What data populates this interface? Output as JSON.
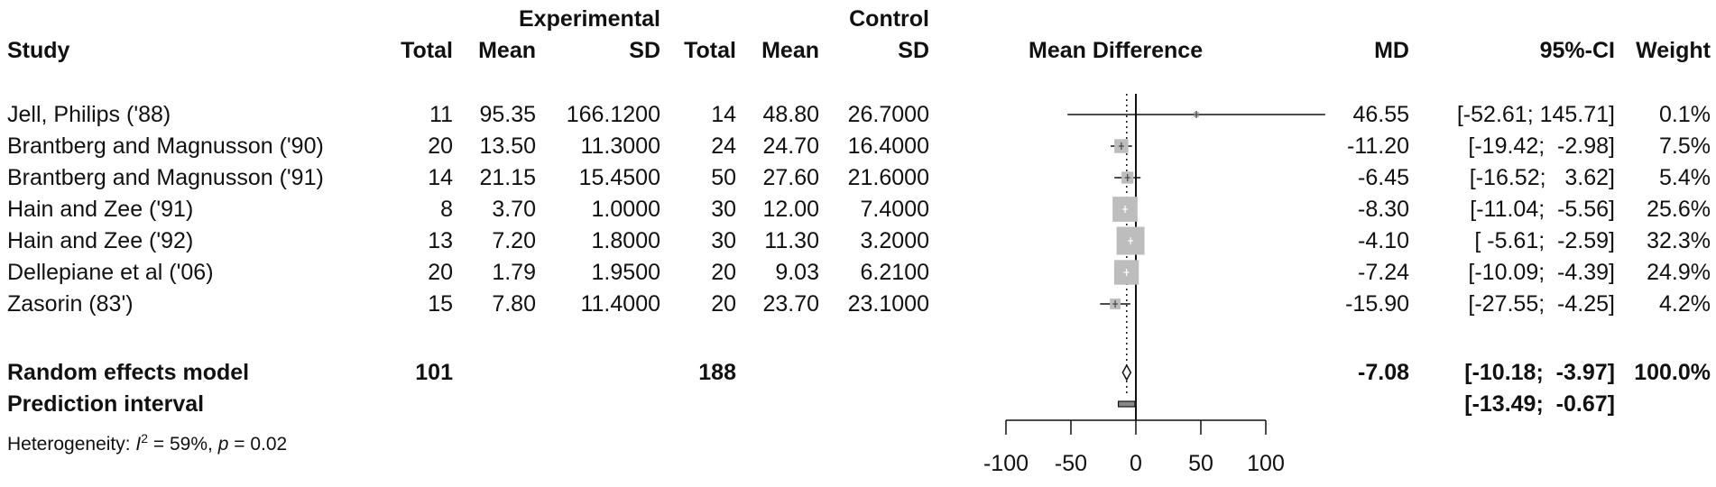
{
  "chart_data": {
    "type": "forest",
    "group_headers": {
      "experimental": "Experimental",
      "control": "Control"
    },
    "columns": {
      "study": "Study",
      "exp_total": "Total",
      "exp_mean": "Mean",
      "exp_sd": "SD",
      "ctl_total": "Total",
      "ctl_mean": "Mean",
      "ctl_sd": "SD",
      "plot": "Mean Difference",
      "md": "MD",
      "ci": "95%-CI",
      "weight": "Weight"
    },
    "studies": [
      {
        "name": "Jell, Philips ('88)",
        "e_total": "11",
        "e_mean": "95.35",
        "e_sd": "166.1200",
        "c_total": "14",
        "c_mean": "48.80",
        "c_sd": "26.7000",
        "md_text": "46.55",
        "ci_text": "[-52.61; 145.71]",
        "weight_text": "0.1%",
        "md": 46.55,
        "lower": -52.61,
        "upper": 145.71,
        "weight": 0.1
      },
      {
        "name": "Brantberg and Magnusson ('90)",
        "e_total": "20",
        "e_mean": "13.50",
        "e_sd": "11.3000",
        "c_total": "24",
        "c_mean": "24.70",
        "c_sd": "16.4000",
        "md_text": "-11.20",
        "ci_text": "[-19.42;  -2.98]",
        "weight_text": "7.5%",
        "md": -11.2,
        "lower": -19.42,
        "upper": -2.98,
        "weight": 7.5
      },
      {
        "name": "Brantberg and Magnusson ('91)",
        "e_total": "14",
        "e_mean": "21.15",
        "e_sd": "15.4500",
        "c_total": "50",
        "c_mean": "27.60",
        "c_sd": "21.6000",
        "md_text": "-6.45",
        "ci_text": "[-16.52;   3.62]",
        "weight_text": "5.4%",
        "md": -6.45,
        "lower": -16.52,
        "upper": 3.62,
        "weight": 5.4
      },
      {
        "name": "Hain and Zee ('91)",
        "e_total": "8",
        "e_mean": "3.70",
        "e_sd": "1.0000",
        "c_total": "30",
        "c_mean": "12.00",
        "c_sd": "7.4000",
        "md_text": "-8.30",
        "ci_text": "[-11.04;  -5.56]",
        "weight_text": "25.6%",
        "md": -8.3,
        "lower": -11.04,
        "upper": -5.56,
        "weight": 25.6
      },
      {
        "name": "Hain and Zee ('92)",
        "e_total": "13",
        "e_mean": "7.20",
        "e_sd": "1.8000",
        "c_total": "30",
        "c_mean": "11.30",
        "c_sd": "3.2000",
        "md_text": "-4.10",
        "ci_text": "[ -5.61;  -2.59]",
        "weight_text": "32.3%",
        "md": -4.1,
        "lower": -5.61,
        "upper": -2.59,
        "weight": 32.3
      },
      {
        "name": "Dellepiane et al ('06)",
        "e_total": "20",
        "e_mean": "1.79",
        "e_sd": "1.9500",
        "c_total": "20",
        "c_mean": "9.03",
        "c_sd": "6.2100",
        "md_text": "-7.24",
        "ci_text": "[-10.09;  -4.39]",
        "weight_text": "24.9%",
        "md": -7.24,
        "lower": -10.09,
        "upper": -4.39,
        "weight": 24.9
      },
      {
        "name": "Zasorin (83')",
        "e_total": "15",
        "e_mean": "7.80",
        "e_sd": "11.4000",
        "c_total": "20",
        "c_mean": "23.70",
        "c_sd": "23.1000",
        "md_text": "-15.90",
        "ci_text": "[-27.55;  -4.25]",
        "weight_text": "4.2%",
        "md": -15.9,
        "lower": -27.55,
        "upper": -4.25,
        "weight": 4.2
      }
    ],
    "random_effects": {
      "label": "Random effects model",
      "e_total": "101",
      "c_total": "188",
      "md_text": "-7.08",
      "ci_text": "[-10.18;  -3.97]",
      "weight_text": "100.0%",
      "md": -7.08,
      "lower": -10.18,
      "upper": -3.97
    },
    "prediction_interval": {
      "label": "Prediction interval",
      "ci_text": "[-13.49;  -0.67]",
      "lower": -13.49,
      "upper": -0.67
    },
    "heterogeneity": {
      "prefix": "Heterogeneity: ",
      "i2_symbol": "I",
      "i2_sup": "2",
      "i2_value": " = 59%, ",
      "p_symbol": "p",
      "p_value": " = 0.02"
    },
    "x_axis": {
      "ticks": [
        -100,
        -50,
        0,
        50,
        100
      ],
      "xlim": [
        -100,
        100
      ],
      "null_line": 0
    }
  }
}
